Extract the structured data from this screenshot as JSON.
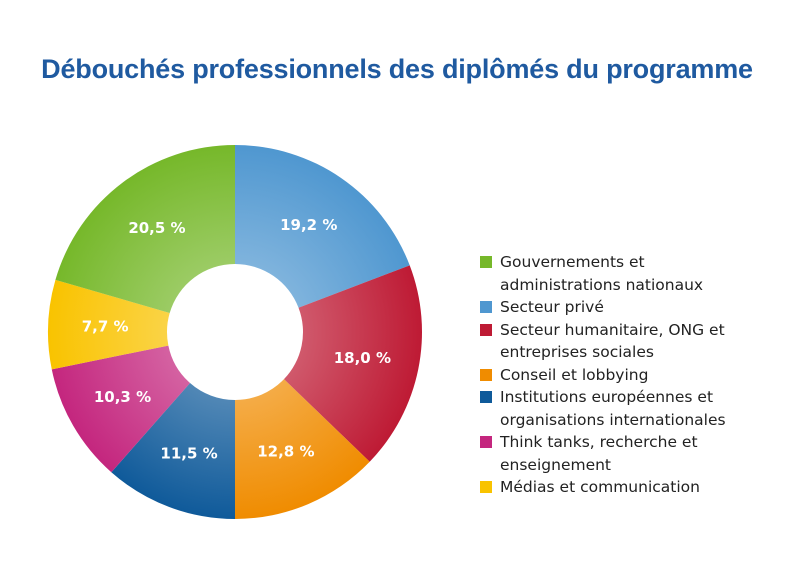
{
  "chart_data": {
    "type": "pie",
    "donut": true,
    "title": "Débouchés professionnels des diplômés du programme",
    "categories": [
      "Gouvernements et administrations nationaux",
      "Secteur privé",
      "Secteur humanitaire, ONG et entreprises sociales",
      "Conseil et lobbying",
      "Institutions européennes et organisations internationales",
      "Think tanks, recherche et enseignement",
      "Médias et communication"
    ],
    "legend_lines": [
      [
        "Gouvernements et",
        "administrations nationaux"
      ],
      [
        "Secteur privé"
      ],
      [
        "Secteur humanitaire, ONG et",
        "entreprises sociales"
      ],
      [
        "Conseil et lobbying"
      ],
      [
        "Institutions européennes et",
        "organisations internationales"
      ],
      [
        "Think tanks, recherche et",
        "enseignement"
      ],
      [
        "Médias et communication"
      ]
    ],
    "values": [
      20.5,
      19.2,
      18.0,
      12.8,
      11.5,
      10.3,
      7.7
    ],
    "value_labels": [
      "20,5 %",
      "19,2 %",
      "18,0 %",
      "12,8 %",
      "11,5 %",
      "10,3 %",
      "7,7 %"
    ],
    "colors": [
      "#76b82a",
      "#4f97d0",
      "#be1a34",
      "#f08c00",
      "#0f5a9a",
      "#c4267e",
      "#f9c300"
    ],
    "slice_order_clockwise_from_top": [
      1,
      2,
      3,
      4,
      5,
      6,
      0
    ],
    "legend_placement": "right"
  }
}
